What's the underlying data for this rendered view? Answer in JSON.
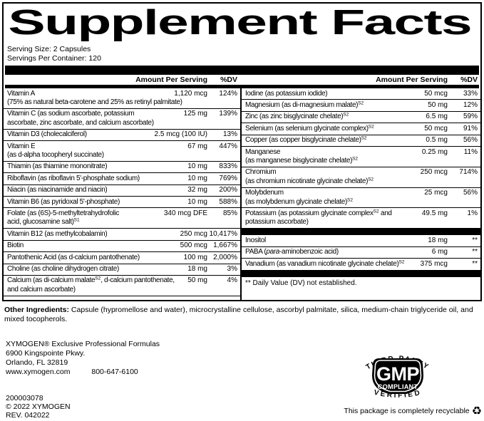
{
  "title": "Supplement Facts",
  "serving": {
    "size": "Serving Size: 2 Capsules",
    "per_container": "Servings Per Container: 120"
  },
  "table": {
    "header": {
      "amount": "Amount Per Serving",
      "dv": "%DV"
    },
    "left_rows": [
      {
        "name": "Vitamin A",
        "name2": "(75% as natural beta-carotene and 25% as retinyl palmitate)",
        "amount": "1,120 mcg",
        "dv": "124%"
      },
      {
        "name": "Vitamin C (as sodium ascorbate, potassium",
        "name2": "ascorbate, zinc ascorbate, and calcium ascorbate)",
        "amount": "125 mg",
        "dv": "139%"
      },
      {
        "name": "Vitamin D3 (cholecalciferol)",
        "amount": "2.5 mcg (100 IU)",
        "dv": "13%"
      },
      {
        "name": "Vitamin E",
        "name2": "(as d-alpha tocopheryl succinate)",
        "amount": "67 mg",
        "dv": "447%"
      },
      {
        "name": "Thiamin (as thiamine mononitrate)",
        "amount": "10 mg",
        "dv": "833%"
      },
      {
        "name": "Riboflavin (as riboflavin 5'-phosphate sodium)",
        "amount": "10 mg",
        "dv": "769%"
      },
      {
        "name": "Niacin (as niacinamide and niacin)",
        "amount": "32 mg",
        "dv": "200%"
      },
      {
        "name": "Vitamin B6 (as pyridoxal 5'-phosphate)",
        "amount": "10 mg",
        "dv": "588%"
      },
      {
        "name": "Folate (as (6S)-5-methyltetrahydrofolic",
        "name2": "acid, glucosamine salt)^{S1}",
        "amount": "340 mcg DFE",
        "dv": "85%"
      },
      {
        "name": "Vitamin B12 (as methylcobalamin)",
        "amount": "250 mcg",
        "dv": "10,417%"
      },
      {
        "name": "Biotin",
        "amount": "500 mcg",
        "dv": "1,667%"
      },
      {
        "name": "Pantothenic Acid (as d-calcium pantothenate)",
        "amount": "100 mg",
        "dv": "2,000%"
      },
      {
        "name": "Choline (as choline dihydrogen citrate)",
        "amount": "18 mg",
        "dv": "3%"
      },
      {
        "name": "Calcium (as di-calcium malate^{S2}, d-calcium pantothenate,",
        "name2": "and calcium ascorbate)",
        "amount": "50 mg",
        "dv": "4%"
      }
    ],
    "right_rows": [
      {
        "name": "Iodine (as potassium iodide)",
        "amount": "50 mcg",
        "dv": "33%"
      },
      {
        "name": "Magnesium (as di-magnesium malate)^{S2}",
        "amount": "50 mg",
        "dv": "12%"
      },
      {
        "name": "Zinc (as zinc bisglycinate chelate)^{S2}",
        "amount": "6.5 mg",
        "dv": "59%"
      },
      {
        "name": "Selenium (as selenium glycinate complex)^{S2}",
        "amount": "50 mcg",
        "dv": "91%"
      },
      {
        "name": "Copper (as copper bisglycinate chelate)^{S2}",
        "amount": "0.5 mg",
        "dv": "56%"
      },
      {
        "name": "Manganese",
        "name2": "(as manganese bisglycinate chelate)^{S2}",
        "amount": "0.25 mg",
        "dv": "11%"
      },
      {
        "name": "Chromium",
        "name2": "(as chromium nicotinate glycinate chelate)^{S2}",
        "amount": "250 mcg",
        "dv": "714%"
      },
      {
        "name": "Molybdenum",
        "name2": "(as molybdenum glycinate chelate)^{S2}",
        "amount": "25 mcg",
        "dv": "56%"
      },
      {
        "name": "Potassium (as potassium glycinate complex^{S2} and",
        "name2": "potassium ascorbate)",
        "amount": "49.5 mg",
        "dv": "1%"
      },
      {
        "type": "divider"
      },
      {
        "name": "Inositol",
        "amount": "18 mg",
        "dv": "**"
      },
      {
        "name": "PABA ({i}para{/i}-aminobenzoic acid)",
        "amount": "6 mg",
        "dv": "**"
      },
      {
        "name": "Vanadium (as vanadium nicotinate glycinate chelate)^{S2}",
        "amount": "375 mcg",
        "dv": "**"
      },
      {
        "type": "divider"
      },
      {
        "type": "footnote",
        "text": "** Daily Value (DV) not established."
      }
    ]
  },
  "other_ingredients": {
    "label": "Other Ingredients:",
    "text": " Capsule (hypromellose and water), microcrystalline cellulose, ascorbyl palmitate, silica, medium-chain triglyceride oil, and mixed tocopherols."
  },
  "company": {
    "name": "XYMOGEN® Exclusive Professional Formulas",
    "street": "6900 Kingspointe Pkwy.",
    "city": "Orlando, FL 32819",
    "website": "www.xymogen.com",
    "phone": "800-647-6100"
  },
  "codes": {
    "item": "200003078",
    "copyright": "© 2022 XYMOGEN",
    "rev": "REV. 042022"
  },
  "seal": {
    "arc_top": "THIRD-PARTY",
    "center_main": "GMP",
    "center_sub": "COMPLIANT",
    "arc_bottom": "VERIFIED"
  },
  "recyclable": {
    "text": "This package is completely recyclable",
    "icon_glyph": "♻"
  }
}
